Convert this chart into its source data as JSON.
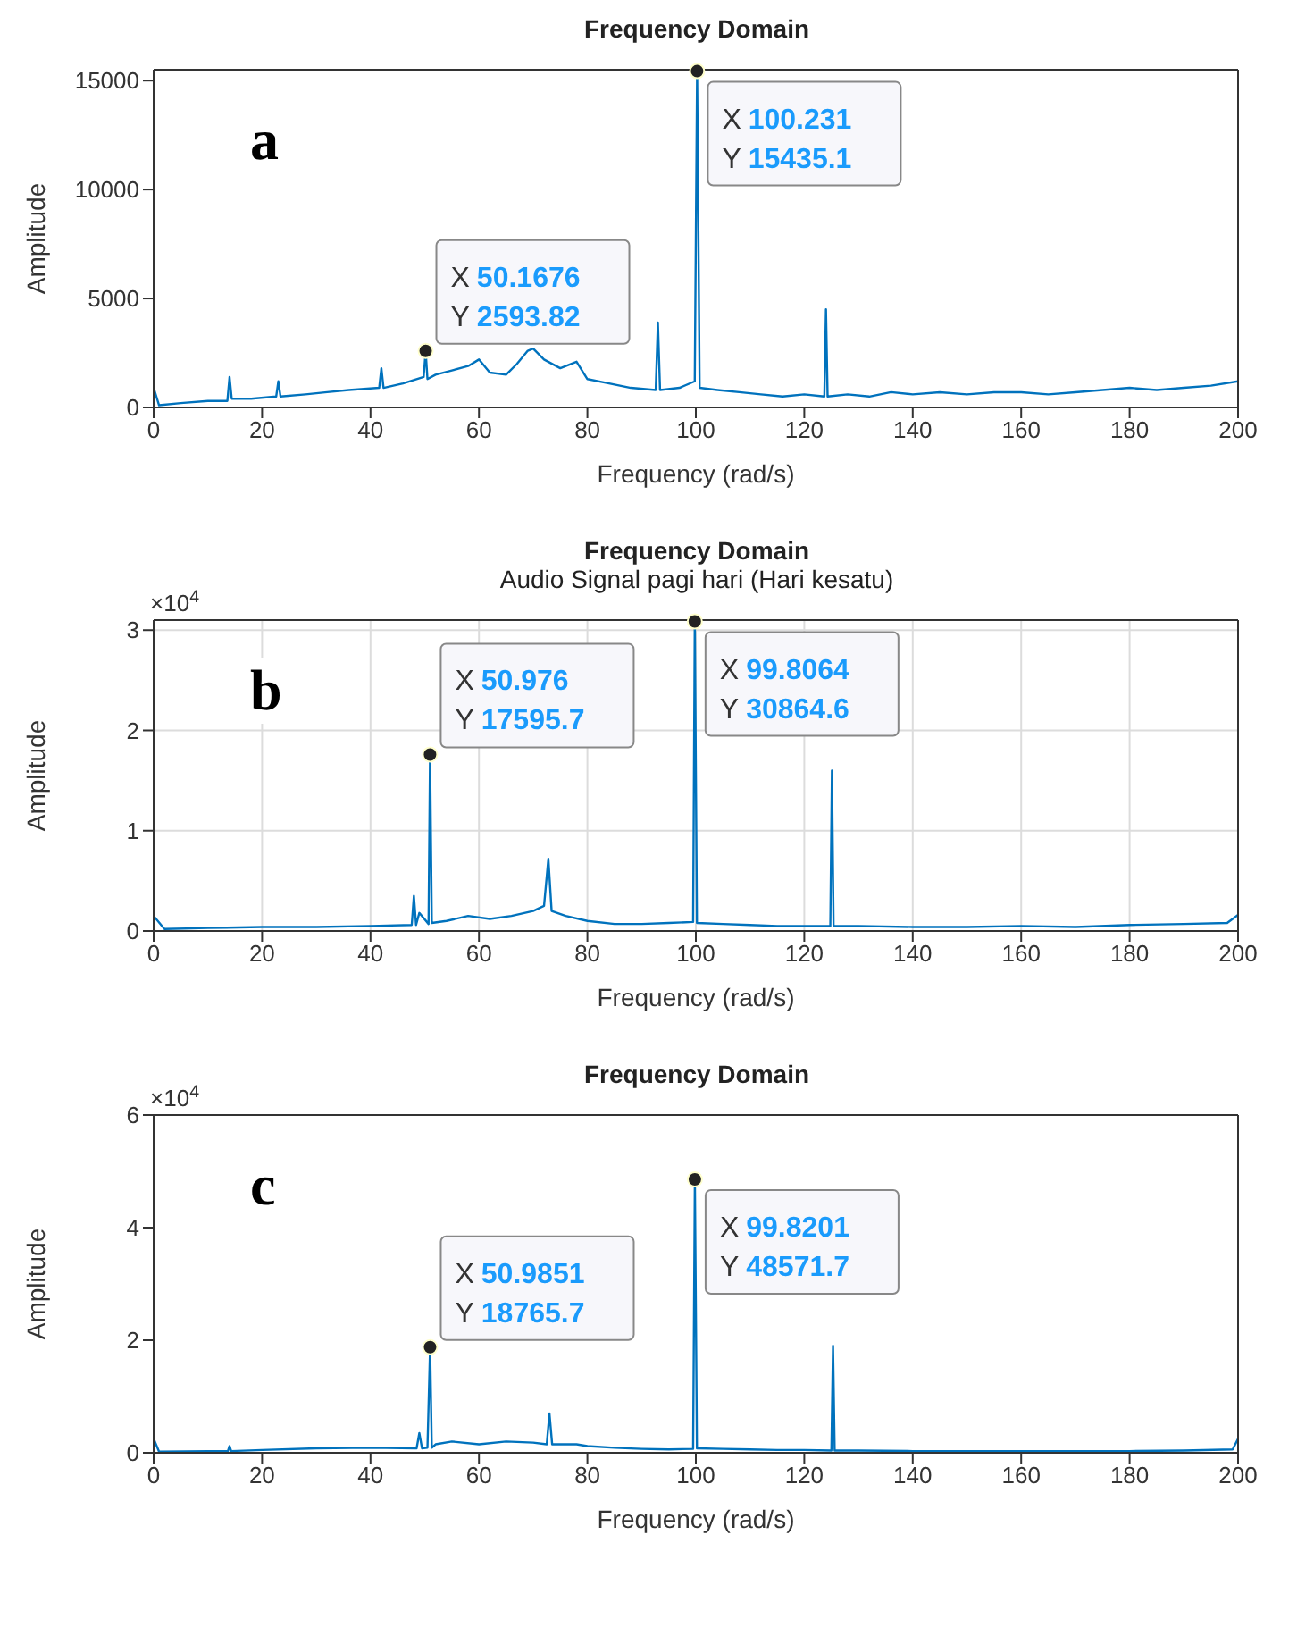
{
  "chart_data": [
    {
      "type": "line",
      "title": "Frequency Domain",
      "xlabel": "Frequency (rad/s)",
      "ylabel": "Amplitude",
      "color": "#0072bd",
      "xlim": [
        0,
        200
      ],
      "xticks": [
        0,
        20,
        40,
        60,
        80,
        100,
        120,
        140,
        160,
        180,
        200
      ],
      "ylim": [
        0,
        15500
      ],
      "yticks": [
        0,
        5000,
        10000,
        15000
      ],
      "grid": false,
      "x": [
        0,
        1,
        5,
        10,
        13.6,
        14,
        14.4,
        18,
        22.6,
        23,
        23.4,
        28,
        32,
        36,
        41.6,
        42,
        42.4,
        46,
        49.8,
        50.1676,
        50.5,
        52,
        55,
        58,
        60,
        62,
        65,
        67,
        69,
        70,
        72,
        75,
        78,
        80,
        84,
        88,
        92.6,
        93,
        93.4,
        97,
        99.8,
        100.231,
        100.7,
        104,
        108,
        112,
        116,
        120,
        123.7,
        124,
        124.3,
        128,
        132,
        136,
        140,
        145,
        150,
        155,
        160,
        165,
        170,
        175,
        180,
        185,
        190,
        195,
        200
      ],
      "values": [
        900,
        100,
        200,
        300,
        300,
        1400,
        400,
        400,
        500,
        1200,
        500,
        600,
        700,
        800,
        900,
        1800,
        900,
        1100,
        1400,
        2593.82,
        1300,
        1500,
        1700,
        1900,
        2200,
        1600,
        1500,
        2000,
        2600,
        2700,
        2200,
        1800,
        2100,
        1300,
        1100,
        900,
        800,
        3900,
        800,
        900,
        1200,
        15435.1,
        900,
        800,
        700,
        600,
        500,
        600,
        500,
        4500,
        500,
        600,
        500,
        700,
        600,
        700,
        600,
        700,
        700,
        600,
        700,
        800,
        900,
        800,
        900,
        1000,
        1200
      ],
      "annotations": [
        "a",
        {
          "text": "X 50.1676\nY 2593.82",
          "x": 50.1676,
          "y": 2593.82
        },
        {
          "text": "X 100.231\nY 15435.1",
          "x": 100.231,
          "y": 15435.1
        }
      ]
    },
    {
      "type": "line",
      "title": "Frequency Domain",
      "subtitle": "Audio Signal pagi hari (Hari kesatu)",
      "xlabel": "Frequency (rad/s)",
      "ylabel": "Amplitude",
      "color": "#0072bd",
      "xlim": [
        0,
        200
      ],
      "xticks": [
        0,
        20,
        40,
        60,
        80,
        100,
        120,
        140,
        160,
        180,
        200
      ],
      "ylim": [
        0,
        3.1
      ],
      "yticks": [
        0,
        1,
        2,
        3
      ],
      "grid": true,
      "x": [
        0,
        2,
        10,
        20,
        30,
        40,
        47.6,
        48,
        48.4,
        49,
        50.7,
        50.976,
        51.3,
        54,
        58,
        62,
        66,
        70,
        72,
        72.8,
        73.4,
        76,
        80,
        85,
        90,
        95,
        99.5,
        99.8064,
        100.2,
        105,
        110,
        115,
        120,
        124.8,
        125.1,
        125.4,
        130,
        140,
        150,
        160,
        170,
        180,
        190,
        198,
        200
      ],
      "values": [
        0.15,
        0.02,
        0.03,
        0.04,
        0.04,
        0.05,
        0.06,
        0.35,
        0.06,
        0.18,
        0.07,
        1.75957,
        0.08,
        0.1,
        0.15,
        0.12,
        0.15,
        0.2,
        0.25,
        0.72,
        0.2,
        0.15,
        0.1,
        0.07,
        0.07,
        0.08,
        0.09,
        3.08646,
        0.08,
        0.07,
        0.06,
        0.05,
        0.05,
        0.05,
        1.6,
        0.05,
        0.05,
        0.04,
        0.04,
        0.05,
        0.04,
        0.06,
        0.07,
        0.08,
        0.16
      ],
      "annotations": [
        "b",
        "×10$^{4}$",
        {
          "text": "X 50.976\nY 17595.7",
          "x": 50.976,
          "y": 1.75957
        },
        {
          "text": "X 99.8064\nY 30864.6",
          "x": 99.8064,
          "y": 3.08646
        }
      ]
    },
    {
      "type": "line",
      "title": "Frequency Domain",
      "xlabel": "Frequency (rad/s)",
      "ylabel": "Amplitude",
      "color": "#0072bd",
      "xlim": [
        0,
        200
      ],
      "xticks": [
        0,
        20,
        40,
        60,
        80,
        100,
        120,
        140,
        160,
        180,
        200
      ],
      "ylim": [
        0,
        6
      ],
      "yticks": [
        0,
        2,
        4,
        6
      ],
      "grid": false,
      "x": [
        0,
        1,
        10,
        13.7,
        14,
        14.3,
        20,
        30,
        40,
        48.5,
        49,
        49.5,
        50.5,
        50.9851,
        51.3,
        52,
        55,
        60,
        65,
        70,
        72.5,
        73,
        73.5,
        78,
        80,
        85,
        90,
        95,
        99.5,
        99.8201,
        100.2,
        105,
        110,
        115,
        120,
        125,
        125.3,
        125.6,
        130,
        140,
        150,
        160,
        170,
        180,
        190,
        199,
        200
      ],
      "values": [
        0.25,
        0.02,
        0.03,
        0.03,
        0.12,
        0.03,
        0.05,
        0.08,
        0.09,
        0.08,
        0.35,
        0.08,
        0.09,
        1.87657,
        0.09,
        0.15,
        0.2,
        0.15,
        0.2,
        0.18,
        0.15,
        0.7,
        0.15,
        0.15,
        0.12,
        0.09,
        0.07,
        0.06,
        0.07,
        4.85717,
        0.08,
        0.07,
        0.06,
        0.05,
        0.05,
        0.04,
        1.9,
        0.04,
        0.04,
        0.03,
        0.03,
        0.03,
        0.03,
        0.03,
        0.04,
        0.06,
        0.25
      ],
      "annotations": [
        "c",
        "×10$^{4}$",
        {
          "text": "X 50.9851\nY 18765.7",
          "x": 50.9851,
          "y": 1.87657
        },
        {
          "text": "X 99.8201\nY 48571.7",
          "x": 99.8201,
          "y": 4.85717
        }
      ]
    }
  ]
}
